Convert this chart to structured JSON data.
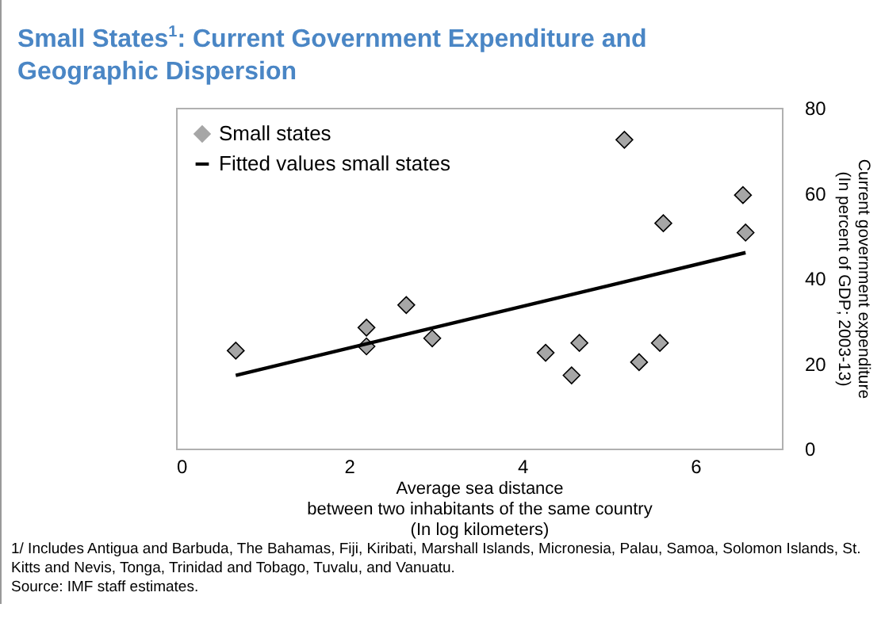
{
  "chart_data": {
    "type": "scatter",
    "title": "Small States$^{1}$: Current Government Expenditure and Geographic Dispersion",
    "xlabel": "Average sea distance\nbetween two inhabitants of the same country\n(In log kilometers)",
    "ylabel": "Current government expenditure\n(In percent of GDP; 2003-13)",
    "xlim": [
      0,
      7
    ],
    "xticks": [
      0,
      2,
      4,
      6
    ],
    "ylim": [
      0,
      80
    ],
    "yticks": [
      0,
      20,
      40,
      60,
      80
    ],
    "grid": false,
    "legend": "top left",
    "series": [
      {
        "name": "Small states",
        "marker": "diamond",
        "color": "#a6a6a6",
        "x": [
          0.69,
          2.2,
          2.2,
          2.66,
          2.96,
          4.27,
          4.66,
          4.57,
          5.18,
          5.35,
          5.59,
          5.63,
          6.55,
          6.58
        ],
        "values": [
          23.0,
          28.4,
          24.0,
          33.7,
          25.9,
          22.5,
          24.8,
          17.2,
          72.5,
          20.3,
          24.8,
          52.9,
          59.5,
          50.7
        ]
      },
      {
        "name": "Fitted values small states",
        "type": "line",
        "color": "#000000",
        "x": [
          0.69,
          6.58
        ],
        "values": [
          17.2,
          46.0
        ]
      }
    ],
    "annotations": [
      "1/ Includes Antigua and Barbuda, The Bahamas, Fiji, Kiribati, Marshall Islands, Micronesia, Palau, Samoa, Solomon Islands, St. Kitts and Nevis, Tonga, Trinidad and Tobago, Tuvalu, and Vanuatu.",
      "Source: IMF staff estimates."
    ]
  }
}
